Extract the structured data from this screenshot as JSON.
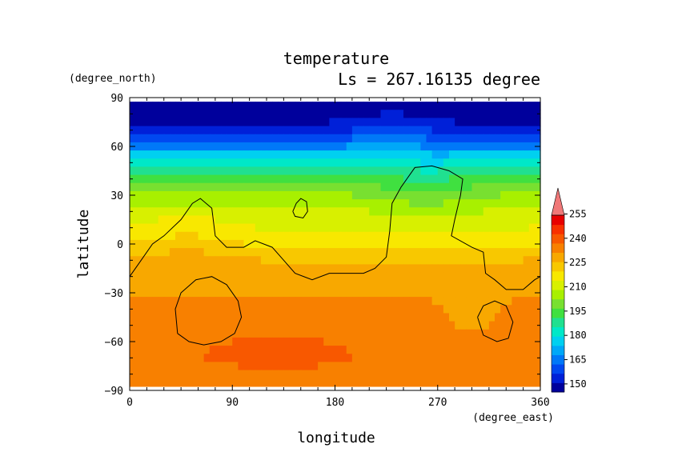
{
  "chart_data": {
    "type": "heatmap",
    "title": "temperature",
    "subtitle": "Ls = 267.16135 degree",
    "xlabel": "longitude",
    "ylabel": "latitude",
    "x_units": "(degree_east)",
    "y_units": "(degree_north)",
    "xlim": [
      0,
      360
    ],
    "ylim": [
      -90,
      90
    ],
    "x_ticks": [
      0,
      90,
      180,
      270,
      360
    ],
    "y_ticks": [
      90,
      60,
      30,
      0,
      -30,
      -60,
      -90
    ],
    "colorbar_ticks": [
      255,
      240,
      225,
      210,
      195,
      180,
      165,
      150
    ],
    "colorbar_colors": [
      "#00009c",
      "#0020d8",
      "#0048f0",
      "#0078f8",
      "#00a8f8",
      "#00d0f0",
      "#00e8c8",
      "#20e090",
      "#40e040",
      "#78e030",
      "#a8f000",
      "#d8f000",
      "#f8e800",
      "#f8c800",
      "#f8a800",
      "#f88000",
      "#f85800",
      "#f83000",
      "#e80000",
      "#f07878"
    ],
    "color_range": [
      145,
      260
    ],
    "lat_rows": [
      85,
      80,
      75,
      70,
      65,
      60,
      55,
      50,
      45,
      40,
      35,
      30,
      25,
      20,
      15,
      10,
      5,
      0,
      -5,
      -10,
      -15,
      -20,
      -25,
      -30,
      -35,
      -40,
      -45,
      -50,
      -55,
      -60,
      -65,
      -70,
      -75,
      -80,
      -85
    ],
    "profile": [
      147,
      148,
      150,
      154,
      160,
      167,
      175,
      182,
      189,
      195,
      199,
      203,
      206,
      209,
      211,
      213,
      215,
      218,
      222,
      225,
      227,
      229,
      230,
      231,
      232,
      233,
      234,
      234,
      234,
      235,
      235,
      235,
      234,
      233,
      232
    ],
    "lon_bumps": [
      {
        "lon": 260,
        "lat": 35,
        "amp": -5,
        "wlon": 45,
        "wlat": 20
      },
      {
        "lon": 50,
        "lat": 5,
        "amp": 5,
        "wlon": 50,
        "wlat": 20
      },
      {
        "lon": 300,
        "lat": -45,
        "amp": -4,
        "wlon": 30,
        "wlat": 15
      },
      {
        "lon": 130,
        "lat": -70,
        "amp": 4,
        "wlon": 80,
        "wlat": 15
      },
      {
        "lon": 230,
        "lat": 70,
        "amp": 6,
        "wlon": 40,
        "wlat": 12
      }
    ],
    "contours": [
      [
        [
          0,
          -20
        ],
        [
          10,
          -10
        ],
        [
          20,
          0
        ],
        [
          30,
          5
        ],
        [
          45,
          15
        ],
        [
          55,
          25
        ],
        [
          62,
          28
        ],
        [
          72,
          22
        ],
        [
          75,
          5
        ],
        [
          85,
          -2
        ],
        [
          100,
          -2
        ],
        [
          110,
          2
        ],
        [
          125,
          -2
        ],
        [
          135,
          -10
        ],
        [
          145,
          -18
        ],
        [
          160,
          -22
        ],
        [
          175,
          -18
        ],
        [
          190,
          -18
        ],
        [
          205,
          -18
        ],
        [
          215,
          -15
        ],
        [
          225,
          -8
        ],
        [
          228,
          8
        ],
        [
          230,
          25
        ],
        [
          238,
          35
        ],
        [
          250,
          47
        ],
        [
          265,
          48
        ],
        [
          280,
          45
        ],
        [
          292,
          40
        ],
        [
          290,
          30
        ],
        [
          285,
          15
        ],
        [
          282,
          5
        ],
        [
          300,
          -2
        ],
        [
          310,
          -5
        ],
        [
          312,
          -18
        ],
        [
          320,
          -22
        ],
        [
          330,
          -28
        ],
        [
          345,
          -28
        ],
        [
          355,
          -22
        ],
        [
          360,
          -20
        ]
      ],
      [
        [
          42,
          -55
        ],
        [
          40,
          -40
        ],
        [
          45,
          -30
        ],
        [
          58,
          -22
        ],
        [
          72,
          -20
        ],
        [
          85,
          -25
        ],
        [
          95,
          -35
        ],
        [
          98,
          -45
        ],
        [
          92,
          -55
        ],
        [
          80,
          -60
        ],
        [
          65,
          -62
        ],
        [
          52,
          -60
        ],
        [
          42,
          -55
        ]
      ],
      [
        [
          143,
          20
        ],
        [
          146,
          25
        ],
        [
          150,
          28
        ],
        [
          155,
          26
        ],
        [
          156,
          20
        ],
        [
          152,
          16
        ],
        [
          145,
          17
        ],
        [
          143,
          20
        ]
      ],
      [
        [
          305,
          -45
        ],
        [
          310,
          -38
        ],
        [
          320,
          -35
        ],
        [
          330,
          -38
        ],
        [
          336,
          -48
        ],
        [
          332,
          -58
        ],
        [
          322,
          -60
        ],
        [
          310,
          -56
        ],
        [
          305,
          -45
        ]
      ]
    ]
  }
}
